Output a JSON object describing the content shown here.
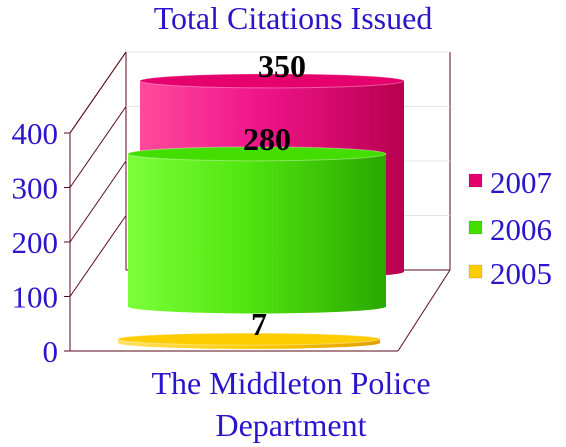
{
  "chart_data": {
    "type": "bar",
    "title": "Total Citations Issued",
    "xlabel": "The Middleton Police Department",
    "xlabel_lines": [
      "The Middleton Police",
      "Department"
    ],
    "ylabel": "",
    "ylim": [
      0,
      400
    ],
    "yticks": [
      "0",
      "100",
      "200",
      "300",
      "400"
    ],
    "categories": [
      ""
    ],
    "series": [
      {
        "name": "2007",
        "values": [
          350
        ],
        "color": "#e6006e"
      },
      {
        "name": "2006",
        "values": [
          280
        ],
        "color": "#44dd00"
      },
      {
        "name": "2005",
        "values": [
          7
        ],
        "color": "#ffcc00"
      }
    ],
    "data_labels": [
      "350",
      "280",
      "7"
    ],
    "legend_position": "right",
    "grid": true,
    "style": "3d-cylinder"
  }
}
